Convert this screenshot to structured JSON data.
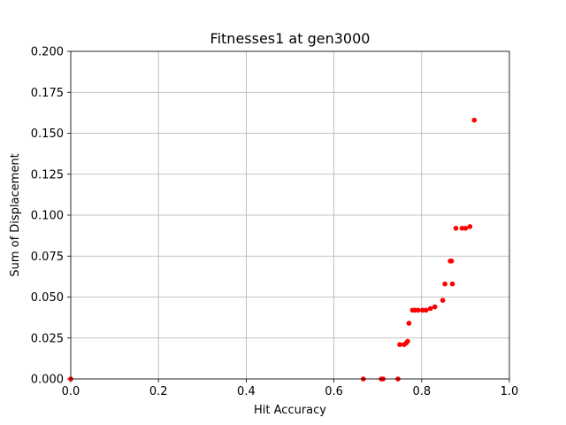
{
  "chart_data": {
    "type": "scatter",
    "title": "Fitnesses1 at gen3000",
    "xlabel": "Hit Accuracy",
    "ylabel": "Sum of Displacement",
    "xlim": [
      0.0,
      1.0
    ],
    "ylim": [
      0.0,
      0.2
    ],
    "grid": true,
    "marker_color": "#ff0000",
    "x_ticks": [
      "0.0",
      "0.2",
      "0.4",
      "0.6",
      "0.8",
      "1.0"
    ],
    "y_ticks": [
      "0.000",
      "0.025",
      "0.050",
      "0.075",
      "0.100",
      "0.125",
      "0.150",
      "0.175",
      "0.200"
    ],
    "points": [
      {
        "x": 0.0,
        "y": 0.0
      },
      {
        "x": 0.667,
        "y": 0.0
      },
      {
        "x": 0.708,
        "y": 0.0
      },
      {
        "x": 0.712,
        "y": 0.0
      },
      {
        "x": 0.746,
        "y": 0.0
      },
      {
        "x": 0.75,
        "y": 0.021
      },
      {
        "x": 0.76,
        "y": 0.021
      },
      {
        "x": 0.765,
        "y": 0.022
      },
      {
        "x": 0.768,
        "y": 0.023
      },
      {
        "x": 0.771,
        "y": 0.034
      },
      {
        "x": 0.779,
        "y": 0.042
      },
      {
        "x": 0.785,
        "y": 0.042
      },
      {
        "x": 0.792,
        "y": 0.042
      },
      {
        "x": 0.802,
        "y": 0.042
      },
      {
        "x": 0.81,
        "y": 0.042
      },
      {
        "x": 0.82,
        "y": 0.043
      },
      {
        "x": 0.83,
        "y": 0.044
      },
      {
        "x": 0.848,
        "y": 0.048
      },
      {
        "x": 0.853,
        "y": 0.058
      },
      {
        "x": 0.865,
        "y": 0.072
      },
      {
        "x": 0.868,
        "y": 0.072
      },
      {
        "x": 0.87,
        "y": 0.058
      },
      {
        "x": 0.878,
        "y": 0.092
      },
      {
        "x": 0.892,
        "y": 0.092
      },
      {
        "x": 0.9,
        "y": 0.092
      },
      {
        "x": 0.91,
        "y": 0.093
      },
      {
        "x": 0.92,
        "y": 0.158
      }
    ]
  }
}
